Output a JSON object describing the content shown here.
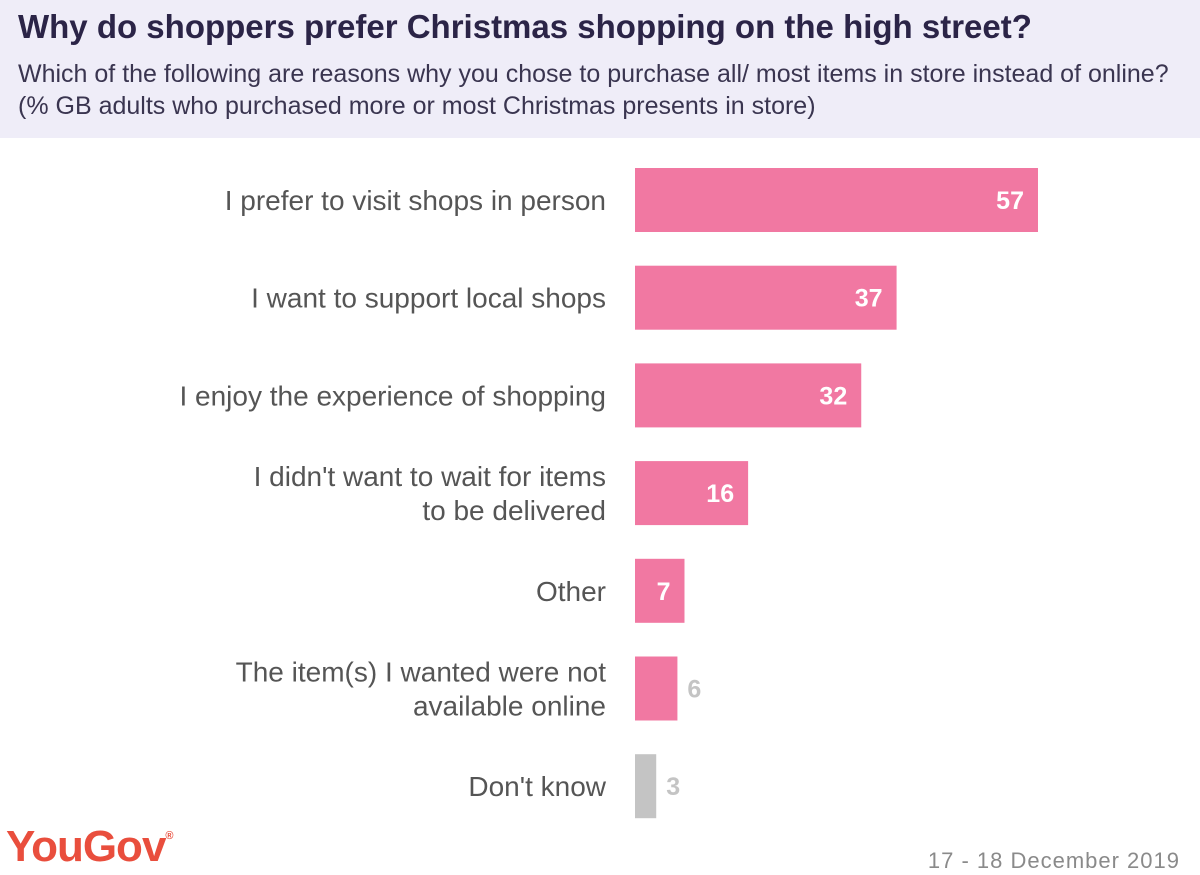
{
  "header": {
    "title": "Why do shoppers prefer Christmas shopping on the high street?",
    "subtitle": "Which of the following are reasons why you chose to purchase all/ most items in store instead of online? (% GB adults who purchased more or most Christmas presents in store)"
  },
  "footer": {
    "brand": "YouGov",
    "registered_mark": "®",
    "date": "17 - 18 December 2019"
  },
  "colors": {
    "bar": "#f178a2",
    "bar_muted": "#c4c4c4",
    "brand": "#e94e3d",
    "header_bg": "#efedf8"
  },
  "chart_data": {
    "type": "bar",
    "orientation": "horizontal",
    "categories": [
      [
        "I prefer to visit shops in person"
      ],
      [
        "I want to support local shops"
      ],
      [
        "I enjoy the experience of shopping"
      ],
      [
        "I didn't want to wait for items",
        "to be delivered"
      ],
      [
        "Other"
      ],
      [
        "The item(s) I wanted were not",
        "available online"
      ],
      [
        "Don't know"
      ]
    ],
    "values": [
      57,
      37,
      32,
      16,
      7,
      6,
      3
    ],
    "muted": [
      false,
      false,
      false,
      false,
      false,
      false,
      true
    ],
    "unit": "%",
    "xlim": [
      0,
      100
    ],
    "grid": false,
    "legend": "none"
  }
}
